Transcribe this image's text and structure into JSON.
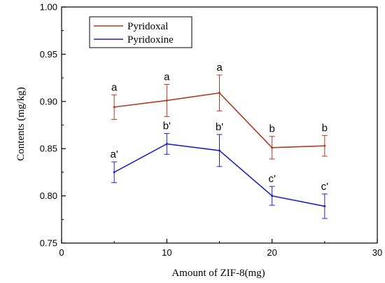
{
  "chart_data": {
    "type": "line",
    "xlabel": "Amount of ZIF-8(mg)",
    "ylabel": "Contents (mg/kg)",
    "xlim": [
      0,
      30
    ],
    "ylim": [
      0.75,
      1.0
    ],
    "x_ticks": [
      0,
      10,
      20,
      30
    ],
    "x_tick_labels": [
      "0",
      "10",
      "20",
      "30"
    ],
    "y_ticks": [
      0.75,
      0.8,
      0.85,
      0.9,
      0.95,
      1.0
    ],
    "y_tick_labels": [
      "0.75",
      "0.80",
      "0.85",
      "0.90",
      "0.95",
      "1.00"
    ],
    "grid": false,
    "legend_position": "top-left",
    "series": [
      {
        "name": "Pyridoxal",
        "color": "#b03a25",
        "x": [
          5,
          10,
          15,
          20,
          25
        ],
        "y": [
          0.894,
          0.901,
          0.909,
          0.851,
          0.853
        ],
        "error": [
          0.013,
          0.017,
          0.019,
          0.012,
          0.011
        ],
        "labels": [
          "a",
          "a",
          "a",
          "b",
          "b"
        ]
      },
      {
        "name": "Pyridoxine",
        "color": "#2222cc",
        "x": [
          5,
          10,
          15,
          20,
          25
        ],
        "y": [
          0.825,
          0.855,
          0.848,
          0.8,
          0.789
        ],
        "error": [
          0.011,
          0.011,
          0.017,
          0.01,
          0.013
        ],
        "labels": [
          "a'",
          "b'",
          "b'",
          "c'",
          "c'"
        ]
      }
    ]
  }
}
